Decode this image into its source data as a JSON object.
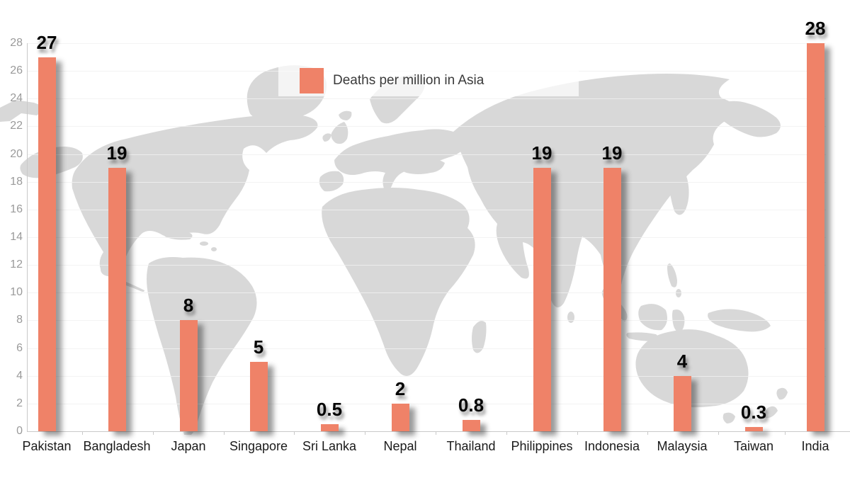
{
  "chart_data": {
    "type": "bar",
    "title": "",
    "legend": {
      "label": "Deaths per million in Asia",
      "position": "top-center"
    },
    "categories": [
      "Pakistan",
      "Bangladesh",
      "Japan",
      "Singapore",
      "Sri Lanka",
      "Nepal",
      "Thailand",
      "Philippines",
      "Indonesia",
      "Malaysia",
      "Taiwan",
      "India"
    ],
    "values": [
      27,
      19,
      8,
      5,
      0.5,
      2,
      0.8,
      19,
      19,
      4,
      0.3,
      28
    ],
    "value_labels": [
      "27",
      "19",
      "8",
      "5",
      "0.5",
      "2",
      "0.8",
      "19",
      "19",
      "4",
      "0.3",
      "28"
    ],
    "xlabel": "",
    "ylabel": "",
    "ylim": [
      0,
      28
    ],
    "yticks": [
      0,
      2,
      4,
      6,
      8,
      10,
      12,
      14,
      16,
      18,
      20,
      22,
      24,
      26,
      28
    ],
    "grid": true,
    "background": "world-map-silhouette",
    "colors": {
      "bar": "#EF8268",
      "legend_swatch": "#EF8268",
      "map": "#D8D8D8",
      "grid": "#E4E4E4",
      "grid_over_map": "rgba(255,255,255,0.55)",
      "axis": "#C9C9C9",
      "ytick_text": "#9A9A9A",
      "xtick_text": "#1A1A1A",
      "value_text": "#050505",
      "legend_text": "#3A3A3A",
      "legend_bg": "rgba(255,255,255,0.72)",
      "background": "#FFFFFF"
    }
  }
}
